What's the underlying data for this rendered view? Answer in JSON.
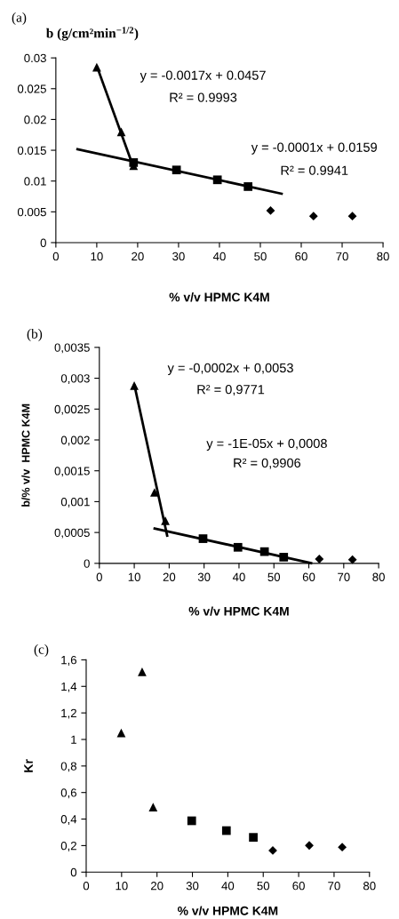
{
  "chart_data": [
    {
      "type": "scatter",
      "title": "(a)",
      "ylabel": "b (g/cm²min$^{−1/2}$)",
      "xlabel": "% v/v HPMC K4M",
      "xlim": [
        0,
        80
      ],
      "xticks": [
        0,
        10,
        20,
        30,
        40,
        50,
        60,
        70,
        80
      ],
      "ylim": [
        0,
        0.03
      ],
      "yticks": [
        0,
        0.005,
        0.01,
        0.015,
        0.02,
        0.025,
        0.03
      ],
      "grid": false,
      "legend": false,
      "annotations": [
        "y = -0.0017x + 0.0457",
        "R² = 0.9993",
        "y = -0.0001x + 0.0159",
        "R² = 0.9941"
      ],
      "series": [
        {
          "type": "line",
          "color": "#000000",
          "marker": "none",
          "line_style": "solid",
          "x": [
            10,
            19
          ],
          "values": [
            0.0287,
            0.0122
          ]
        },
        {
          "type": "line",
          "color": "#000000",
          "marker": "none",
          "line_style": "solid",
          "x": [
            5,
            55.5
          ],
          "values": [
            0.0152,
            0.0079
          ]
        },
        {
          "type": "scatter",
          "color": "#000000",
          "marker": "triangle",
          "x": [
            10,
            16,
            19
          ],
          "values": [
            0.0285,
            0.018,
            0.0125
          ]
        },
        {
          "type": "scatter",
          "color": "#000000",
          "marker": "square",
          "x": [
            19,
            29.5,
            39.5,
            47
          ],
          "values": [
            0.013,
            0.0118,
            0.0102,
            0.0091
          ]
        },
        {
          "type": "scatter",
          "color": "#000000",
          "marker": "diamond",
          "x": [
            52.5,
            63,
            72.5
          ],
          "values": [
            0.0052,
            0.0043,
            0.0043
          ]
        }
      ]
    },
    {
      "type": "scatter",
      "title": "(b)",
      "ylabel": "b/% v/v  HPMC K4M",
      "xlabel": "% v/v HPMC K4M",
      "xlim": [
        0,
        80
      ],
      "xticks": [
        0,
        10,
        20,
        30,
        40,
        50,
        60,
        70,
        80
      ],
      "ylim": [
        0,
        0.0035
      ],
      "yticks": [
        0,
        {
          "value": 0.0005,
          "label": "0,0005"
        },
        {
          "value": 0.001,
          "label": "0,001"
        },
        {
          "value": 0.0015,
          "label": "0,0015"
        },
        {
          "value": 0.002,
          "label": "0,002"
        },
        {
          "value": 0.0025,
          "label": "0,0025"
        },
        {
          "value": 0.003,
          "label": "0,003"
        },
        {
          "value": 0.0035,
          "label": "0,0035"
        }
      ],
      "grid": false,
      "legend": false,
      "annotations": [
        "y = -0,0002x + 0,0053",
        "R² = 0,9771",
        "y = -1E-05x + 0,0008",
        "R² = 0,9906"
      ],
      "series": [
        {
          "type": "line",
          "color": "#000000",
          "marker": "none",
          "line_style": "solid",
          "x": [
            10,
            19.5
          ],
          "values": [
            0.0029,
            0.00043
          ]
        },
        {
          "type": "line",
          "color": "#000000",
          "marker": "none",
          "line_style": "solid",
          "x": [
            15.5,
            61
          ],
          "values": [
            0.00057,
            0
          ]
        },
        {
          "type": "scatter",
          "color": "#000000",
          "marker": "triangle",
          "x": [
            10,
            15.8,
            18.9
          ],
          "values": [
            0.00288,
            0.00115,
            0.00069
          ]
        },
        {
          "type": "scatter",
          "color": "#000000",
          "marker": "square",
          "x": [
            29.7,
            39.7,
            47.3,
            52.8
          ],
          "values": [
            0.0004,
            0.00026,
            0.00019,
            0.0001
          ]
        },
        {
          "type": "scatter",
          "color": "#000000",
          "marker": "diamond",
          "x": [
            63,
            72.5
          ],
          "values": [
            7e-05,
            6e-05
          ]
        }
      ]
    },
    {
      "type": "scatter",
      "title": "(c)",
      "ylabel": "Kr",
      "xlabel": "% v/v HPMC K4M",
      "xlim": [
        0,
        80
      ],
      "xticks": [
        0,
        10,
        20,
        30,
        40,
        50,
        60,
        70,
        80
      ],
      "ylim": [
        0,
        1.6
      ],
      "yticks": [
        0,
        {
          "value": 0.2,
          "label": "0,2"
        },
        {
          "value": 0.4,
          "label": "0,4"
        },
        {
          "value": 0.6,
          "label": "0,6"
        },
        {
          "value": 0.8,
          "label": "0,8"
        },
        1,
        {
          "value": 1.2,
          "label": "1,2"
        },
        {
          "value": 1.4,
          "label": "1,4"
        },
        {
          "value": 1.6,
          "label": "1,6"
        }
      ],
      "grid": false,
      "legend": false,
      "series": [
        {
          "type": "scatter",
          "color": "#000000",
          "marker": "triangle",
          "x": [
            9.9,
            15.8,
            18.9
          ],
          "values": [
            1.05,
            1.51,
            0.49
          ]
        },
        {
          "type": "scatter",
          "color": "#000000",
          "marker": "square",
          "x": [
            29.8,
            39.6,
            47.2
          ],
          "values": [
            0.387,
            0.313,
            0.262
          ]
        },
        {
          "type": "scatter",
          "color": "#000000",
          "marker": "diamond",
          "x": [
            52.7,
            63,
            72.3
          ],
          "values": [
            0.163,
            0.201,
            0.188
          ]
        }
      ]
    }
  ]
}
